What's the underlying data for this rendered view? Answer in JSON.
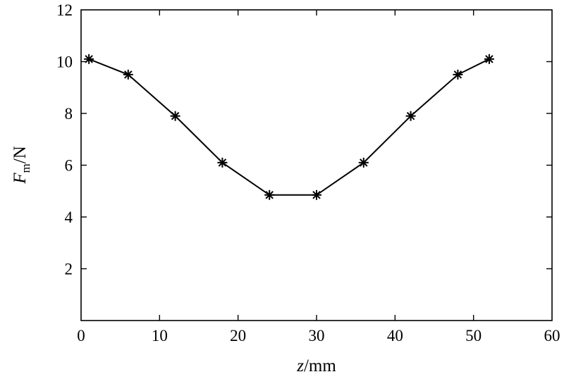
{
  "chart_data": {
    "type": "line",
    "xlabel": {
      "var": "z",
      "unit": "/mm"
    },
    "ylabel": {
      "var": "F",
      "sub": "m",
      "unit": "/N"
    },
    "xlim": [
      0,
      60
    ],
    "ylim": [
      0,
      12
    ],
    "xticks": [
      0,
      10,
      20,
      30,
      40,
      50,
      60
    ],
    "yticks": [
      2,
      4,
      6,
      8,
      10,
      12
    ],
    "grid": false,
    "series": [
      {
        "marker": "asterisk",
        "color": "#000000",
        "x": [
          1,
          6,
          12,
          18,
          24,
          30,
          36,
          42,
          48,
          52
        ],
        "y": [
          10.1,
          9.5,
          7.9,
          6.1,
          4.85,
          4.85,
          6.1,
          7.9,
          9.5,
          10.1
        ]
      }
    ]
  }
}
